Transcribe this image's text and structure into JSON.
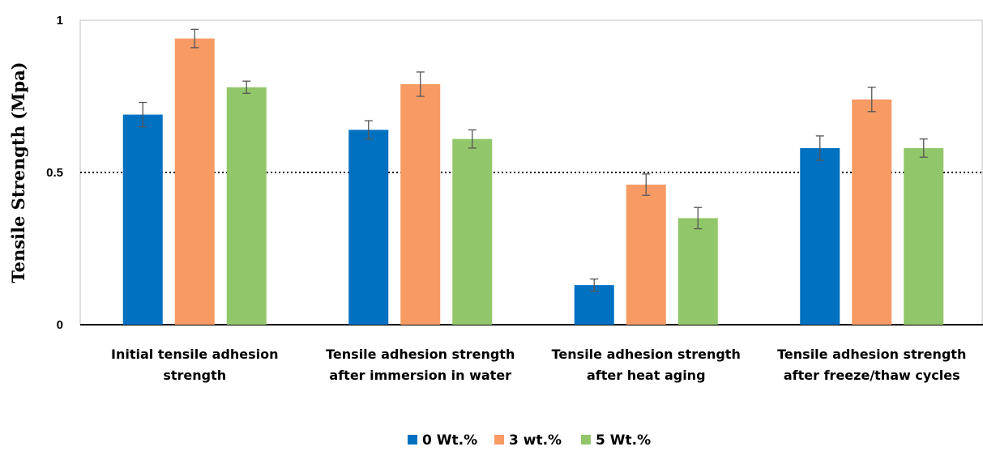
{
  "chart_data": {
    "type": "bar",
    "ylabel": "Tensile Strength (Mpa)",
    "xlabel": "",
    "ylim": [
      0,
      1
    ],
    "yticks": [
      "0",
      "0.5",
      "1"
    ],
    "reference_line": {
      "value": 0.5,
      "style": "dotted"
    },
    "grid": false,
    "legend_position": "bottom",
    "categories": [
      [
        "Initial tensile adhesion",
        "strength"
      ],
      [
        "Tensile adhesion strength",
        "after immersion in water"
      ],
      [
        "Tensile adhesion strength",
        "after heat aging"
      ],
      [
        "Tensile adhesion strength",
        "after freeze/thaw cycles"
      ]
    ],
    "series": [
      {
        "name": "0 Wt.%",
        "color": "#0070C0",
        "values": [
          0.69,
          0.64,
          0.13,
          0.58
        ],
        "errors": [
          0.04,
          0.03,
          0.02,
          0.04
        ]
      },
      {
        "name": "3 wt.%",
        "color": "#F79A64",
        "values": [
          0.94,
          0.79,
          0.46,
          0.74
        ],
        "errors": [
          0.03,
          0.04,
          0.035,
          0.04
        ]
      },
      {
        "name": "5 Wt.%",
        "color": "#92C66A",
        "values": [
          0.78,
          0.61,
          0.35,
          0.58
        ],
        "errors": [
          0.02,
          0.03,
          0.035,
          0.03
        ]
      }
    ]
  }
}
